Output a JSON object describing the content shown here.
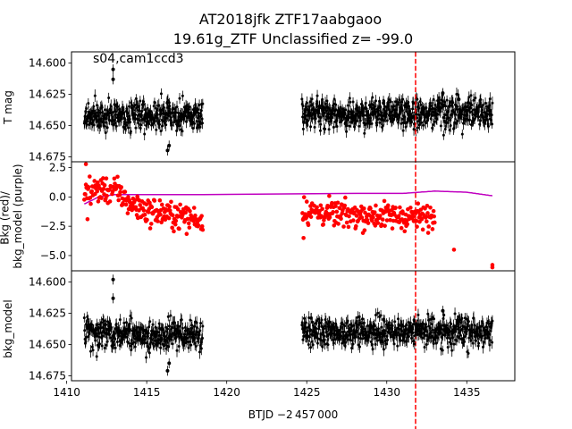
{
  "title": {
    "line1": "AT2018jfk  ZTF17aabgaoo",
    "line2": "19.61g_ZTF Unclassified z= -99.0"
  },
  "annotation": "s04,cam1ccd3",
  "chart_data": [
    {
      "type": "scatter",
      "panel": "top",
      "ylabel": "T mag",
      "y_inverted": true,
      "xlim": [
        1410.3,
        1438.0
      ],
      "ylim": [
        14.679,
        14.591
      ],
      "yticks": [
        14.6,
        14.625,
        14.65,
        14.675
      ],
      "ytick_labels": [
        "14.600",
        "14.625",
        "14.650",
        "14.675"
      ],
      "marker_color": "#000000",
      "error_bars": true,
      "vertical_line": {
        "x": 1431.8,
        "color": "#ff0000",
        "style": "dashed"
      },
      "segments": [
        {
          "x_start": 1411.1,
          "x_end": 1418.5,
          "median": 14.642,
          "scatter": 0.006
        },
        {
          "x_start": 1424.7,
          "x_end": 1436.6,
          "median": 14.64,
          "scatter": 0.006
        }
      ],
      "notable_points": [
        {
          "x": 1412.9,
          "y": 14.605
        },
        {
          "x": 1412.9,
          "y": 14.613
        },
        {
          "x": 1416.3,
          "y": 14.67
        },
        {
          "x": 1416.4,
          "y": 14.666
        },
        {
          "x": 1429.8,
          "y": 14.632
        },
        {
          "x": 1433.5,
          "y": 14.624
        },
        {
          "x": 1434.5,
          "y": 14.629
        }
      ]
    },
    {
      "type": "scatter",
      "panel": "middle",
      "ylabel": "Bkg (red)/\nbkg_model (purple)",
      "xlim": [
        1410.3,
        1438.0
      ],
      "ylim": [
        -6.3,
        3.0
      ],
      "yticks": [
        2.5,
        0.0,
        -2.5,
        -5.0
      ],
      "ytick_labels": [
        "2.5",
        "0.0",
        "−2.5",
        "−5.0"
      ],
      "series": [
        {
          "name": "Bkg",
          "color": "#ff0000",
          "kind": "points",
          "profile": [
            {
              "x": 1411.1,
              "y": 0.5
            },
            {
              "x": 1412.0,
              "y": 0.6
            },
            {
              "x": 1413.0,
              "y": 0.6
            },
            {
              "x": 1414.0,
              "y": -0.6
            },
            {
              "x": 1415.0,
              "y": -1.2
            },
            {
              "x": 1416.0,
              "y": -1.4
            },
            {
              "x": 1417.0,
              "y": -1.6
            },
            {
              "x": 1418.5,
              "y": -2.0
            },
            {
              "x": 1424.7,
              "y": -1.2
            },
            {
              "x": 1427.0,
              "y": -1.5
            },
            {
              "x": 1430.0,
              "y": -1.6
            },
            {
              "x": 1433.0,
              "y": -1.8
            },
            {
              "x": 1436.6,
              "y": -1.5
            }
          ],
          "outliers": [
            {
              "x": 1411.2,
              "y": 2.8
            },
            {
              "x": 1411.3,
              "y": -1.9
            },
            {
              "x": 1436.6,
              "y": -5.8
            },
            {
              "x": 1436.6,
              "y": -6.0
            },
            {
              "x": 1434.2,
              "y": -4.5
            },
            {
              "x": 1424.8,
              "y": -3.5
            }
          ]
        },
        {
          "name": "bkg_model",
          "color": "#c000c0",
          "kind": "line",
          "profile": [
            {
              "x": 1411.1,
              "y": -0.6
            },
            {
              "x": 1412.0,
              "y": 0.0
            },
            {
              "x": 1413.0,
              "y": 0.2
            },
            {
              "x": 1414.0,
              "y": 0.2
            },
            {
              "x": 1416.0,
              "y": 0.2
            },
            {
              "x": 1418.5,
              "y": 0.2
            },
            {
              "x": 1424.7,
              "y": 0.25
            },
            {
              "x": 1428.0,
              "y": 0.3
            },
            {
              "x": 1431.0,
              "y": 0.3
            },
            {
              "x": 1433.0,
              "y": 0.5
            },
            {
              "x": 1435.0,
              "y": 0.4
            },
            {
              "x": 1436.6,
              "y": 0.1
            }
          ]
        }
      ]
    },
    {
      "type": "scatter",
      "panel": "bottom",
      "ylabel": "bkg_model",
      "y_inverted": true,
      "xlim": [
        1410.3,
        1438.0
      ],
      "ylim": [
        14.679,
        14.591
      ],
      "yticks": [
        14.6,
        14.625,
        14.65,
        14.675
      ],
      "ytick_labels": [
        "14.600",
        "14.625",
        "14.650",
        "14.675"
      ],
      "xticks": [
        1410,
        1415,
        1420,
        1425,
        1430,
        1435
      ],
      "xtick_labels": [
        "1410",
        "1415",
        "1420",
        "1425",
        "1430",
        "1435"
      ],
      "xlabel": "BTJD −2 457 000",
      "marker_color": "#000000",
      "error_bars": true,
      "segments": [
        {
          "x_start": 1411.1,
          "x_end": 1418.5,
          "median": 14.642,
          "scatter": 0.006
        },
        {
          "x_start": 1424.7,
          "x_end": 1436.6,
          "median": 14.64,
          "scatter": 0.006
        }
      ],
      "notable_points": [
        {
          "x": 1412.9,
          "y": 14.598
        },
        {
          "x": 1412.9,
          "y": 14.613
        },
        {
          "x": 1416.3,
          "y": 14.671
        },
        {
          "x": 1416.4,
          "y": 14.665
        },
        {
          "x": 1429.8,
          "y": 14.63
        },
        {
          "x": 1433.5,
          "y": 14.623
        },
        {
          "x": 1434.5,
          "y": 14.628
        }
      ]
    }
  ]
}
